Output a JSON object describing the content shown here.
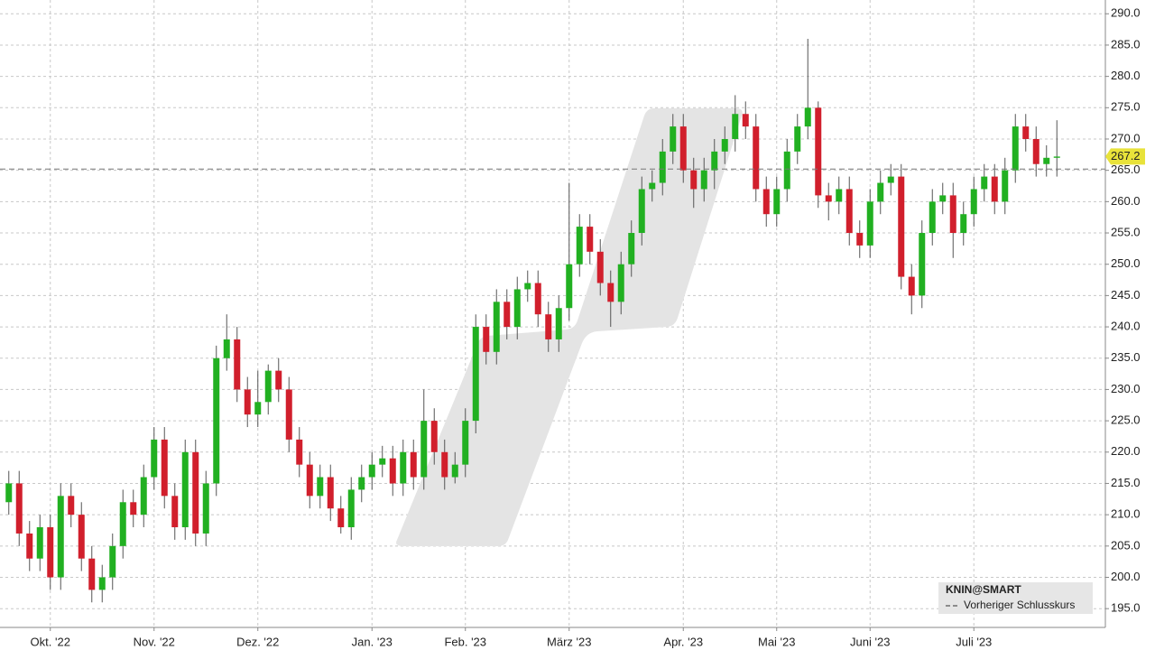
{
  "chart_data": {
    "type": "candlestick",
    "symbol": "KNIN@SMART",
    "reference_line": {
      "name": "Vorheriger Schlusskurs",
      "value": 265.2
    },
    "up_color": "#21b021",
    "down_color": "#d11f2c",
    "grid": true,
    "categories": [
      null,
      null,
      null,
      null,
      "Okt. '22",
      null,
      null,
      null,
      null,
      null,
      null,
      null,
      null,
      null,
      "Nov. '22",
      null,
      null,
      null,
      null,
      null,
      null,
      null,
      null,
      null,
      "Dez. '22",
      null,
      null,
      null,
      null,
      null,
      null,
      null,
      null,
      null,
      null,
      "Jan. '23",
      null,
      null,
      null,
      null,
      null,
      null,
      null,
      null,
      "Feb. '23",
      null,
      null,
      null,
      null,
      null,
      null,
      null,
      null,
      null,
      "März '23",
      null,
      null,
      null,
      null,
      null,
      null,
      null,
      null,
      null,
      null,
      "Apr. '23",
      null,
      null,
      null,
      null,
      null,
      null,
      null,
      null,
      "Mai '23",
      null,
      null,
      null,
      null,
      null,
      null,
      null,
      null,
      "Juni '23",
      null,
      null,
      null,
      null,
      null,
      null,
      null,
      null,
      null,
      "Juli '23",
      null,
      null,
      null,
      null,
      null,
      null,
      null,
      null
    ],
    "open": [
      212,
      215,
      207,
      203,
      208,
      200,
      213,
      210,
      203,
      198,
      200,
      205,
      212,
      210,
      216,
      222,
      213,
      208,
      220,
      207,
      215,
      235,
      238,
      230,
      226,
      228,
      233,
      230,
      222,
      218,
      213,
      216,
      211,
      208,
      214,
      216,
      218,
      219,
      215,
      220,
      216,
      225,
      220,
      216,
      218,
      225,
      240,
      236,
      244,
      240,
      246,
      247,
      242,
      238,
      243,
      250,
      256,
      252,
      247,
      244,
      250,
      255,
      262,
      263,
      268,
      272,
      265,
      262,
      265,
      268,
      270,
      274,
      272,
      262,
      258,
      262,
      268,
      272,
      275,
      261,
      260,
      262,
      255,
      253,
      260,
      263,
      264,
      248,
      245,
      255,
      260,
      261,
      255,
      258,
      262,
      264,
      260,
      265,
      272,
      270,
      266,
      267
    ],
    "high": [
      217,
      217,
      209,
      210,
      210,
      215,
      215,
      212,
      205,
      202,
      207,
      214,
      214,
      218,
      224,
      224,
      215,
      222,
      222,
      217,
      237,
      242,
      240,
      232,
      233,
      234,
      235,
      232,
      224,
      220,
      218,
      218,
      213,
      216,
      218,
      220,
      221,
      221,
      222,
      222,
      230,
      227,
      222,
      220,
      227,
      242,
      242,
      246,
      246,
      248,
      249,
      249,
      244,
      245,
      263,
      258,
      258,
      254,
      249,
      252,
      257,
      264,
      265,
      270,
      274,
      274,
      267,
      267,
      270,
      272,
      277,
      276,
      274,
      264,
      264,
      270,
      274,
      286,
      276,
      263,
      264,
      264,
      257,
      262,
      265,
      266,
      266,
      250,
      257,
      262,
      263,
      263,
      260,
      264,
      266,
      266,
      267,
      274,
      274,
      272,
      269,
      273
    ],
    "low": [
      210,
      205,
      201,
      201,
      198,
      198,
      208,
      201,
      196,
      196,
      198,
      203,
      208,
      208,
      214,
      211,
      206,
      206,
      205,
      205,
      213,
      233,
      228,
      224,
      224,
      226,
      228,
      220,
      216,
      211,
      211,
      209,
      207,
      206,
      212,
      214,
      216,
      213,
      213,
      214,
      214,
      218,
      214,
      215,
      216,
      223,
      234,
      234,
      238,
      238,
      244,
      240,
      236,
      236,
      241,
      248,
      250,
      245,
      240,
      242,
      248,
      253,
      260,
      261,
      266,
      263,
      259,
      260,
      262,
      266,
      268,
      270,
      260,
      256,
      256,
      260,
      266,
      270,
      259,
      257,
      258,
      253,
      251,
      251,
      258,
      261,
      246,
      242,
      243,
      253,
      258,
      251,
      253,
      256,
      260,
      258,
      258,
      263,
      268,
      264,
      264,
      264
    ],
    "close": [
      215,
      207,
      203,
      208,
      200,
      213,
      210,
      203,
      198,
      200,
      205,
      212,
      210,
      216,
      222,
      213,
      208,
      220,
      207,
      215,
      235,
      238,
      230,
      226,
      228,
      233,
      230,
      222,
      218,
      213,
      216,
      211,
      208,
      214,
      216,
      218,
      219,
      215,
      220,
      216,
      225,
      220,
      216,
      218,
      225,
      240,
      236,
      244,
      240,
      246,
      247,
      242,
      238,
      243,
      250,
      256,
      252,
      247,
      244,
      250,
      255,
      262,
      263,
      268,
      272,
      265,
      262,
      265,
      268,
      270,
      274,
      272,
      262,
      258,
      262,
      268,
      272,
      275,
      261,
      260,
      262,
      255,
      253,
      260,
      263,
      264,
      248,
      245,
      255,
      260,
      261,
      255,
      258,
      262,
      264,
      260,
      265,
      272,
      270,
      266,
      267,
      267.2
    ],
    "ylim": [
      192,
      292.2
    ],
    "yticks": [
      {
        "value": 195,
        "label": "195.0"
      },
      {
        "value": 200,
        "label": "200.0"
      },
      {
        "value": 205,
        "label": "205.0"
      },
      {
        "value": 210,
        "label": "210.0"
      },
      {
        "value": 215,
        "label": "215.0"
      },
      {
        "value": 220,
        "label": "220.0"
      },
      {
        "value": 225,
        "label": "225.0"
      },
      {
        "value": 230,
        "label": "230.0"
      },
      {
        "value": 235,
        "label": "235.0"
      },
      {
        "value": 240,
        "label": "240.0"
      },
      {
        "value": 245,
        "label": "245.0"
      },
      {
        "value": 250,
        "label": "250.0"
      },
      {
        "value": 255,
        "label": "255.0"
      },
      {
        "value": 260,
        "label": "260.0"
      },
      {
        "value": 265,
        "label": "265.0"
      },
      {
        "value": 270,
        "label": "270.0"
      },
      {
        "value": 275,
        "label": "275.0"
      },
      {
        "value": 280,
        "label": "280.0"
      },
      {
        "value": 285,
        "label": "285.0"
      },
      {
        "value": 290,
        "label": "290.0"
      }
    ]
  }
}
